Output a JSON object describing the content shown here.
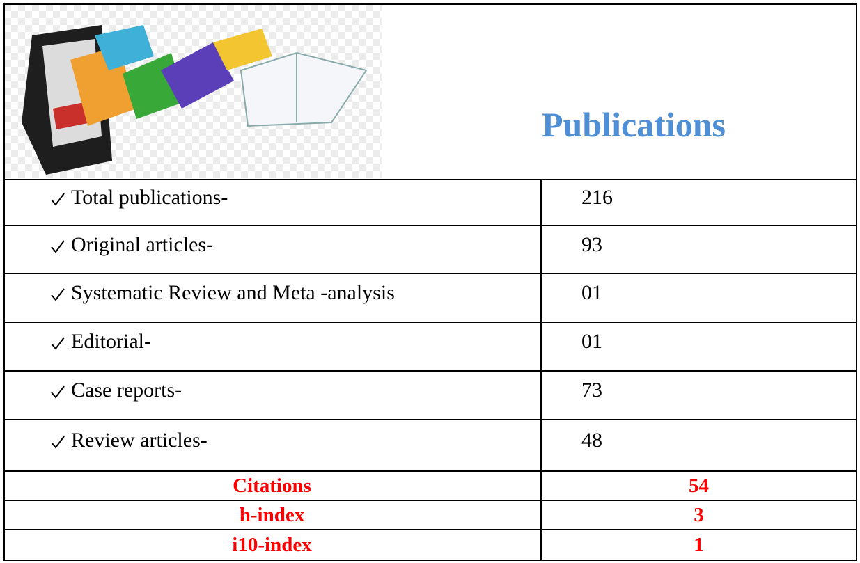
{
  "header": {
    "title": "Publications"
  },
  "table": {
    "rows": [
      [
        "Total publications-",
        "216"
      ],
      [
        "Original articles-",
        "93"
      ],
      [
        "Systematic Review and Meta -analysis",
        "01"
      ],
      [
        "Editorial-",
        "01"
      ],
      [
        "Case reports-",
        "73"
      ],
      [
        "Review articles-",
        "48"
      ]
    ]
  },
  "metrics": {
    "rows": [
      [
        "Citations",
        "54"
      ],
      [
        "h-index",
        "3"
      ],
      [
        "i10-index",
        "1"
      ]
    ]
  }
}
